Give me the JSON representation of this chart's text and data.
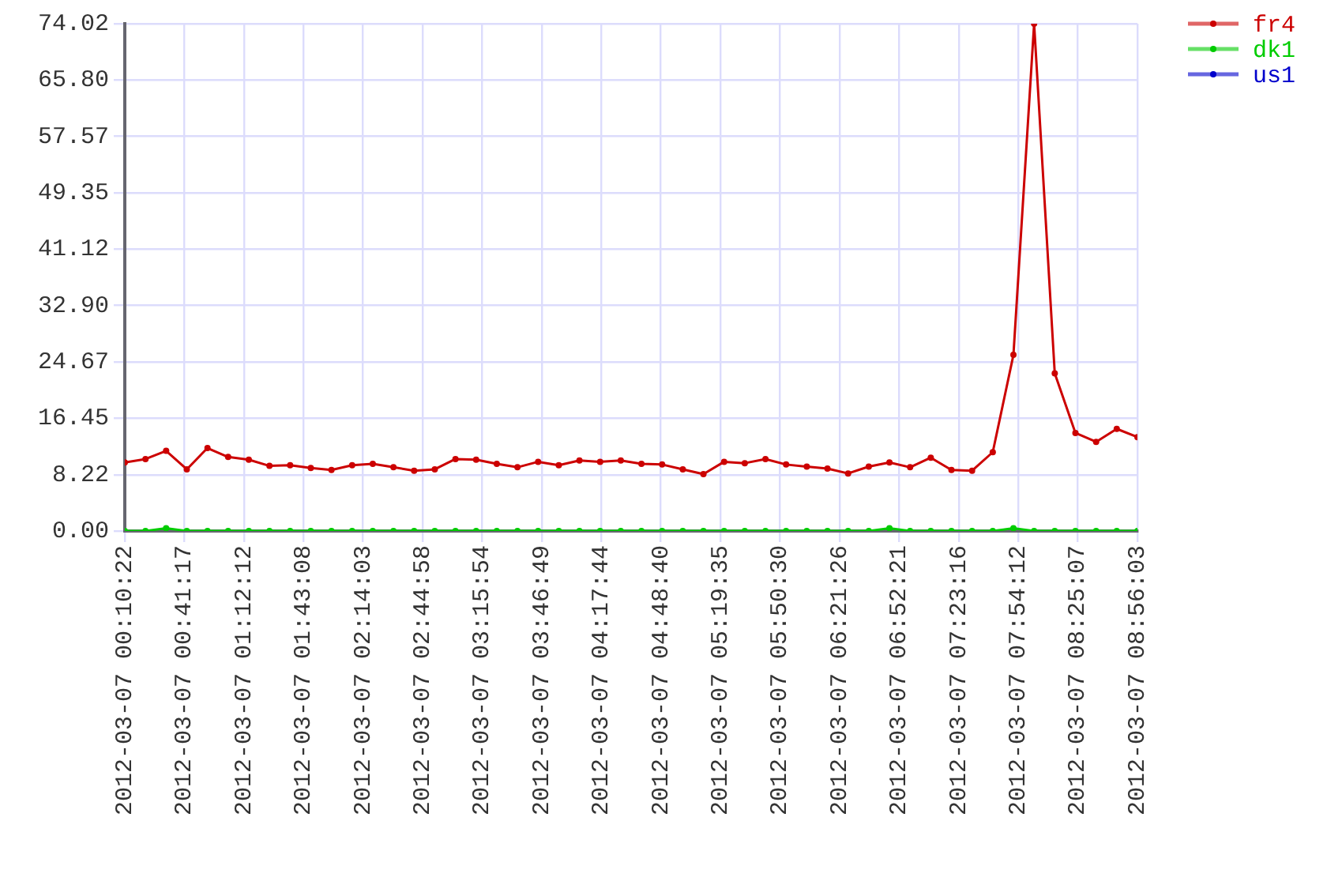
{
  "chart_data": {
    "type": "line",
    "x": [
      "2012-03-07T00:10:22",
      "2012-03-07T00:21:06",
      "2012-03-07T00:31:49",
      "2012-03-07T00:42:33",
      "2012-03-07T00:53:17",
      "2012-03-07T01:04:00",
      "2012-03-07T01:14:44",
      "2012-03-07T01:25:28",
      "2012-03-07T01:36:12",
      "2012-03-07T01:46:55",
      "2012-03-07T01:57:39",
      "2012-03-07T02:08:23",
      "2012-03-07T02:19:06",
      "2012-03-07T02:29:50",
      "2012-03-07T02:40:34",
      "2012-03-07T02:51:17",
      "2012-03-07T03:02:01",
      "2012-03-07T03:12:45",
      "2012-03-07T03:23:28",
      "2012-03-07T03:34:12",
      "2012-03-07T03:44:56",
      "2012-03-07T03:55:40",
      "2012-03-07T04:06:23",
      "2012-03-07T04:17:07",
      "2012-03-07T04:27:51",
      "2012-03-07T04:38:34",
      "2012-03-07T04:49:18",
      "2012-03-07T05:00:02",
      "2012-03-07T05:10:45",
      "2012-03-07T05:21:29",
      "2012-03-07T05:32:13",
      "2012-03-07T05:42:57",
      "2012-03-07T05:53:40",
      "2012-03-07T06:04:24",
      "2012-03-07T06:15:08",
      "2012-03-07T06:25:51",
      "2012-03-07T06:36:35",
      "2012-03-07T06:47:19",
      "2012-03-07T06:58:02",
      "2012-03-07T07:08:46",
      "2012-03-07T07:19:30",
      "2012-03-07T07:30:13",
      "2012-03-07T07:40:57",
      "2012-03-07T07:51:41",
      "2012-03-07T08:02:25",
      "2012-03-07T08:13:08",
      "2012-03-07T08:23:52",
      "2012-03-07T08:34:36",
      "2012-03-07T08:45:19",
      "2012-03-07T08:56:03"
    ],
    "series": [
      {
        "name": "fr4",
        "color": "#cc0000",
        "values": [
          10.0,
          10.5,
          11.7,
          9.0,
          12.1,
          10.8,
          10.4,
          9.5,
          9.6,
          9.2,
          8.9,
          9.6,
          9.8,
          9.3,
          8.8,
          9.0,
          10.5,
          10.4,
          9.8,
          9.3,
          10.1,
          9.6,
          10.3,
          10.1,
          10.3,
          9.8,
          9.7,
          9.0,
          8.3,
          10.1,
          9.9,
          10.5,
          9.7,
          9.4,
          9.1,
          8.4,
          9.4,
          10.0,
          9.3,
          10.7,
          8.9,
          8.8,
          11.5,
          25.7,
          74.02,
          23.0,
          14.3,
          13.0,
          14.9,
          13.7
        ]
      },
      {
        "name": "dk1",
        "color": "#00cc00",
        "values": [
          0,
          0,
          0.4,
          0,
          0,
          0,
          0,
          0,
          0,
          0,
          0,
          0,
          0,
          0,
          0,
          0,
          0,
          0,
          0,
          0,
          0,
          0,
          0,
          0,
          0,
          0,
          0,
          0,
          0,
          0,
          0,
          0,
          0,
          0,
          0,
          0,
          0,
          0.4,
          0,
          0,
          0,
          0,
          0,
          0.4,
          0,
          0,
          0,
          0,
          0,
          0
        ]
      },
      {
        "name": "us1",
        "color": "#0000cc",
        "values": [
          null,
          null,
          null,
          null,
          null,
          null,
          null,
          null,
          null,
          null,
          null,
          null,
          null,
          null,
          null,
          null,
          null,
          null,
          null,
          null,
          null,
          null,
          null,
          null,
          null,
          null,
          null,
          null,
          null,
          null,
          null,
          null,
          null,
          null,
          null,
          null,
          null,
          null,
          null,
          null,
          null,
          null,
          null,
          null,
          null,
          null,
          null,
          null,
          null,
          null
        ]
      }
    ],
    "xlim": [
      "2012-03-07T00:10:22",
      "2012-03-07T08:56:03"
    ],
    "xticks": [
      {
        "value": "2012-03-07T00:10:22",
        "label": "2012-03-07 00:10:22"
      },
      {
        "value": "2012-03-07T00:41:17",
        "label": "2012-03-07 00:41:17"
      },
      {
        "value": "2012-03-07T01:12:12",
        "label": "2012-03-07 01:12:12"
      },
      {
        "value": "2012-03-07T01:43:08",
        "label": "2012-03-07 01:43:08"
      },
      {
        "value": "2012-03-07T02:14:03",
        "label": "2012-03-07 02:14:03"
      },
      {
        "value": "2012-03-07T02:44:58",
        "label": "2012-03-07 02:44:58"
      },
      {
        "value": "2012-03-07T03:15:54",
        "label": "2012-03-07 03:15:54"
      },
      {
        "value": "2012-03-07T03:46:49",
        "label": "2012-03-07 03:46:49"
      },
      {
        "value": "2012-03-07T04:17:44",
        "label": "2012-03-07 04:17:44"
      },
      {
        "value": "2012-03-07T04:48:40",
        "label": "2012-03-07 04:48:40"
      },
      {
        "value": "2012-03-07T05:19:35",
        "label": "2012-03-07 05:19:35"
      },
      {
        "value": "2012-03-07T05:50:30",
        "label": "2012-03-07 05:50:30"
      },
      {
        "value": "2012-03-07T06:21:26",
        "label": "2012-03-07 06:21:26"
      },
      {
        "value": "2012-03-07T06:52:21",
        "label": "2012-03-07 06:52:21"
      },
      {
        "value": "2012-03-07T07:23:16",
        "label": "2012-03-07 07:23:16"
      },
      {
        "value": "2012-03-07T07:54:12",
        "label": "2012-03-07 07:54:12"
      },
      {
        "value": "2012-03-07T08:25:07",
        "label": "2012-03-07 08:25:07"
      },
      {
        "value": "2012-03-07T08:56:03",
        "label": "2012-03-07 08:56:03"
      }
    ],
    "ylim": [
      0,
      74.02
    ],
    "yticks": [
      {
        "value": 0,
        "label": "0.00"
      },
      8.22,
      16.45,
      24.67,
      {
        "value": 32.9,
        "label": "32.90"
      },
      41.12,
      49.35,
      57.57,
      {
        "value": 65.8,
        "label": "65.80"
      },
      74.02
    ],
    "grid": true,
    "legend": "top right",
    "marker": "circle",
    "line_style": "solid"
  }
}
